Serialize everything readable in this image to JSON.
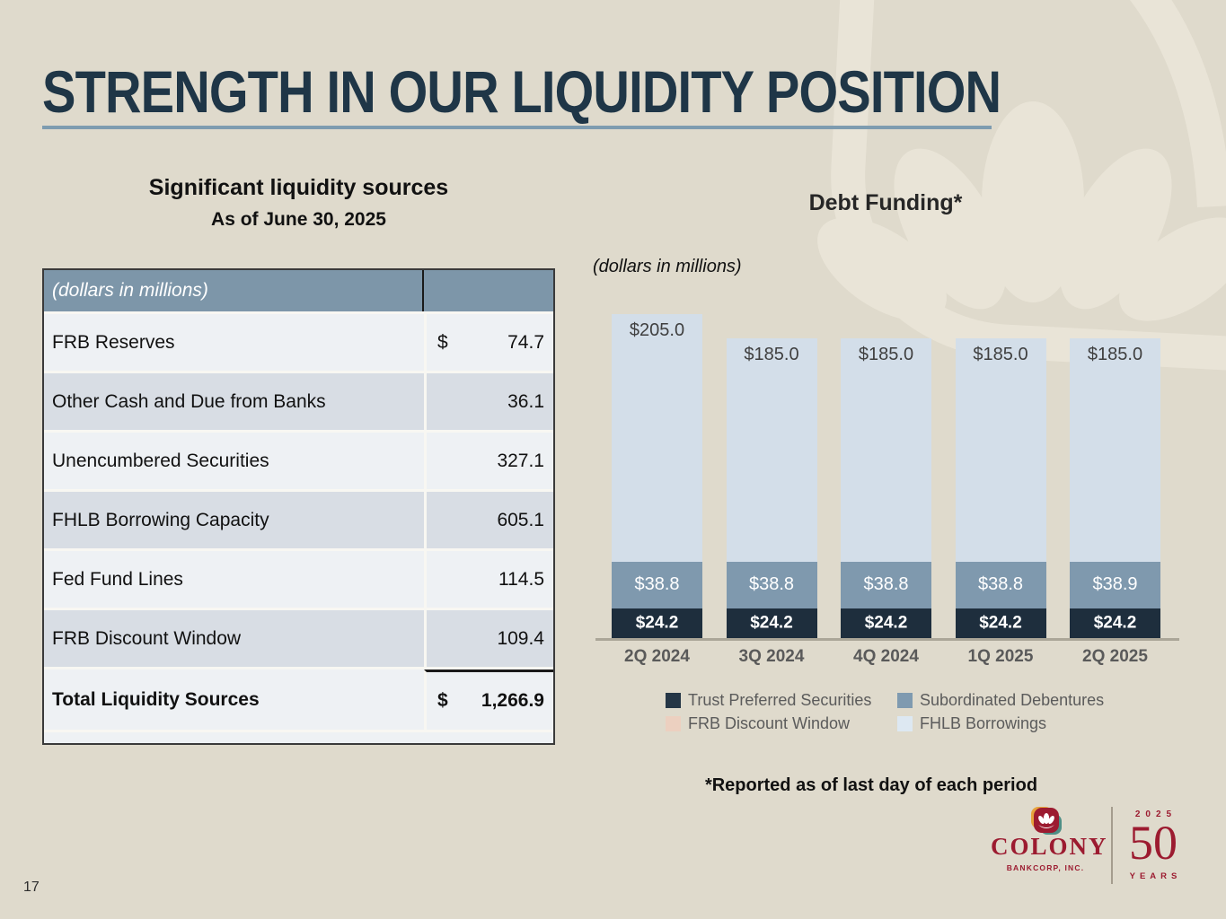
{
  "page": {
    "number": "17",
    "background_color": "#dfdacc",
    "watermark_color": "#e9e4d7"
  },
  "title": {
    "text": "STRENGTH IN OUR LIQUIDITY POSITION",
    "color": "#1f3647",
    "underline_color": "#7e9cb0"
  },
  "liquidity_table": {
    "heading": "Significant liquidity sources",
    "subheading": "As of June 30, 2025",
    "header_label": "(dollars in millions)",
    "header_bg": "#7d96a9",
    "rows": [
      {
        "label": "FRB Reserves",
        "currency": "$",
        "value": "74.7"
      },
      {
        "label": "Other Cash and Due from Banks",
        "currency": "",
        "value": "36.1"
      },
      {
        "label": "Unencumbered Securities",
        "currency": "",
        "value": "327.1"
      },
      {
        "label": "FHLB Borrowing Capacity",
        "currency": "",
        "value": "605.1"
      },
      {
        "label": "Fed Fund Lines",
        "currency": "",
        "value": "114.5"
      },
      {
        "label": "FRB Discount Window",
        "currency": "",
        "value": "109.4"
      }
    ],
    "total_row": {
      "label": "Total Liquidity Sources",
      "currency": "$",
      "value": "1,266.9"
    }
  },
  "chart": {
    "title": "Debt Funding*",
    "units_note": "(dollars in millions)",
    "footnote": "*Reported as of last day of each period"
  },
  "chart_data": {
    "type": "bar",
    "stacked": true,
    "categories": [
      "2Q 2024",
      "3Q 2024",
      "4Q 2024",
      "1Q 2025",
      "2Q 2025"
    ],
    "series": [
      {
        "name": "Trust Preferred Securities",
        "color": "#1e2e3d",
        "label_style": "white-bold",
        "values": [
          24.2,
          24.2,
          24.2,
          24.2,
          24.2
        ]
      },
      {
        "name": "Subordinated Debentures",
        "color": "#7f99ae",
        "label_style": "white",
        "values": [
          38.8,
          38.8,
          38.8,
          38.8,
          38.9
        ]
      },
      {
        "name": "FRB Discount Window",
        "color": "#eaccbc",
        "label_style": "white",
        "values": [
          0,
          0,
          0,
          0,
          0
        ]
      },
      {
        "name": "FHLB Borrowings",
        "color": "#d3dee9",
        "label_style": "dark-top",
        "values": [
          205.0,
          185.0,
          185.0,
          185.0,
          185.0
        ]
      }
    ],
    "legend": [
      {
        "label": "Trust Preferred Securities",
        "color": "#253646"
      },
      {
        "label": "Subordinated Debentures",
        "color": "#7f9ab0"
      },
      {
        "label": "FRB Discount Window",
        "color": "#ecd0c0"
      },
      {
        "label": "FHLB Borrowings",
        "color": "#dde8f2"
      }
    ],
    "value_label_prefix": "$",
    "axis": {
      "x_labels_shown": true,
      "y_axis_shown": false,
      "gridlines": false
    }
  },
  "footer": {
    "brand_name": "COLONY",
    "brand_sub": "BANKCORP, INC.",
    "anniversary_year": "2025",
    "anniversary_number": "50",
    "anniversary_word": "YEARS",
    "brand_color": "#9c1b30"
  }
}
